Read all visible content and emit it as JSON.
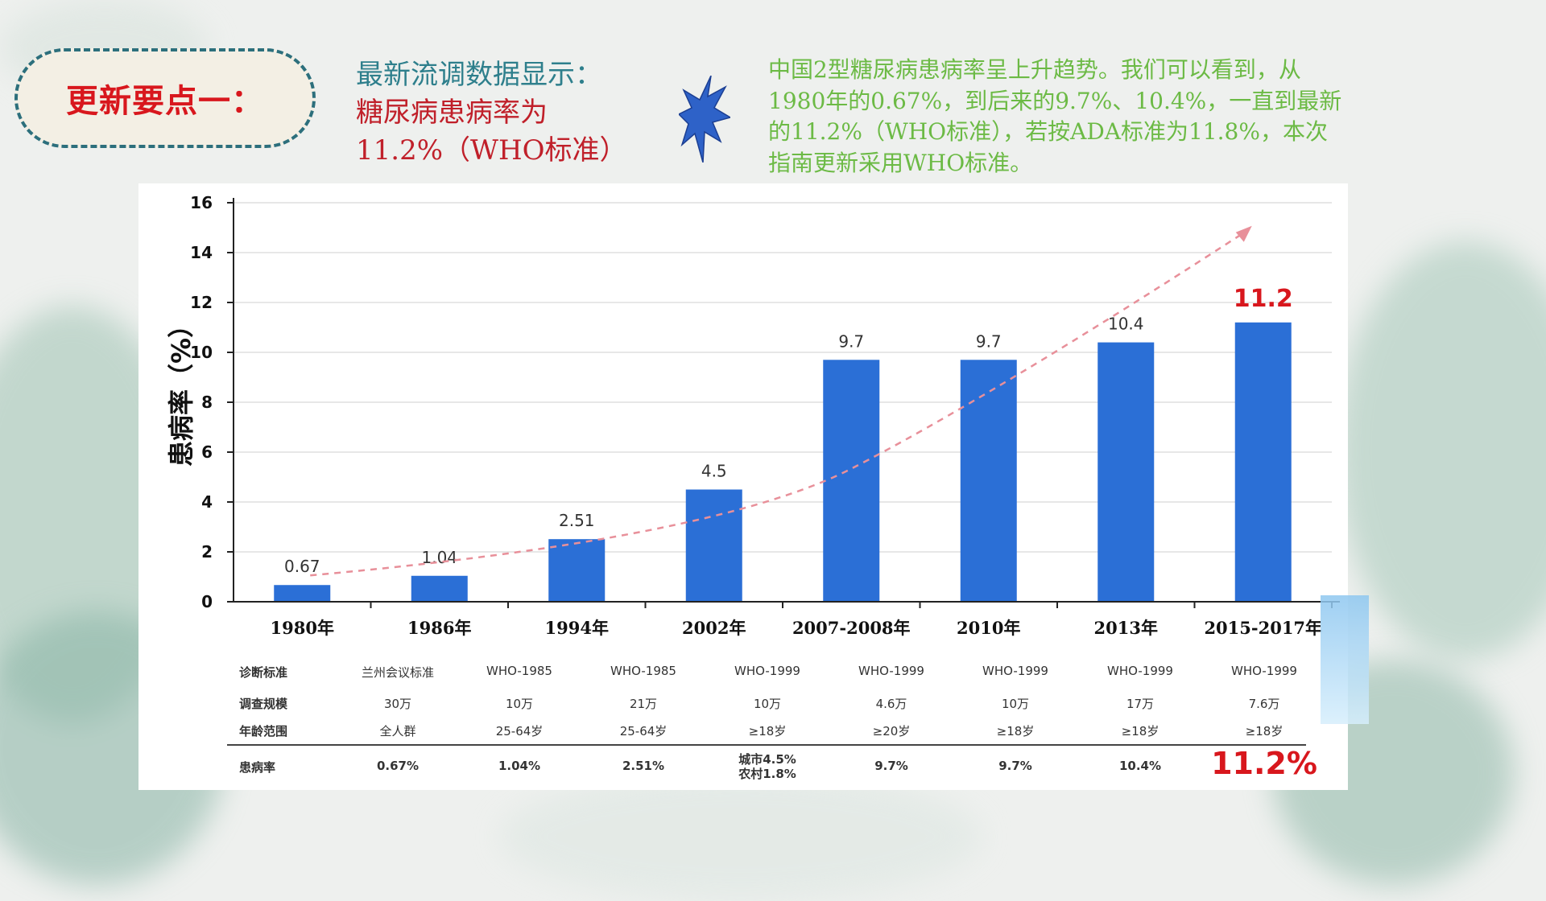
{
  "badge": {
    "label": "更新要点一："
  },
  "headline": {
    "line1": "最新流调数据显示：",
    "line2": "糖尿病患病率为",
    "line3": "11.2%（WHO标准）"
  },
  "description": {
    "line1": "中国2型糖尿病患病率呈上升趋势。我们可以看到，从",
    "line2": "1980年的0.67%，到后来的9.7%、10.4%，一直到最新",
    "line3": "的11.2%（WHO标准），若按ADA标准为11.8%，本次",
    "line4": "指南更新采用WHO标准。"
  },
  "colors": {
    "bar": "#2b6fd6",
    "highlight": "#d8171d",
    "headline_teal": "#2e7f8c",
    "desc_green": "#6cba45",
    "trend": "#e8909a"
  },
  "icons": {
    "burst": "starburst-icon"
  },
  "chart_data": {
    "type": "bar",
    "ylabel": "患病率（%）",
    "ylim": [
      0,
      16
    ],
    "yticks": [
      "0",
      "2",
      "4",
      "6",
      "8",
      "10",
      "12",
      "14",
      "16"
    ],
    "categories": [
      "1980年",
      "1986年",
      "1994年",
      "2002年",
      "2007-2008年",
      "2010年",
      "2013年",
      "2015-2017年"
    ],
    "values": [
      0.67,
      1.04,
      2.51,
      4.5,
      9.7,
      9.7,
      10.4,
      11.2
    ],
    "value_labels": [
      "0.67",
      "1.04",
      "2.51",
      "4.5",
      "9.7",
      "9.7",
      "10.4",
      "11.2"
    ],
    "highlight_last": true,
    "trend_arrow": true,
    "grid": true
  },
  "table": {
    "rows": [
      {
        "label": "诊断标准",
        "values": [
          "兰州会议标准",
          "WHO-1985",
          "WHO-1985",
          "WHO-1999",
          "WHO-1999",
          "WHO-1999",
          "WHO-1999",
          "WHO-1999"
        ]
      },
      {
        "label": "调查规模",
        "values": [
          "30万",
          "10万",
          "21万",
          "10万",
          "4.6万",
          "10万",
          "17万",
          "7.6万"
        ]
      },
      {
        "label": "年龄范围",
        "values": [
          "全人群",
          "25-64岁",
          "25-64岁",
          "≥18岁",
          "≥20岁",
          "≥18岁",
          "≥18岁",
          "≥18岁"
        ]
      }
    ],
    "prevalence": {
      "label": "患病率",
      "values": [
        "0.67%",
        "1.04%",
        "2.51%",
        "城市4.5%\n农村1.8%",
        "9.7%",
        "9.7%",
        "10.4%",
        "11.2%"
      ]
    }
  }
}
